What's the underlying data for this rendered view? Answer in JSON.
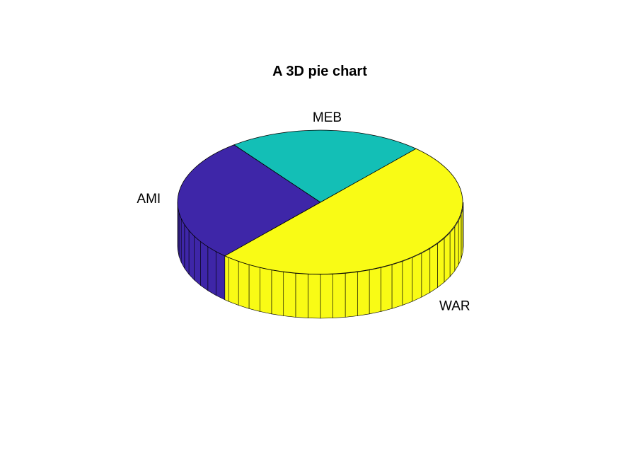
{
  "chart_data": {
    "type": "pie",
    "title": "A 3D pie chart",
    "labels": [
      "AMI",
      "MEB",
      "WAR"
    ],
    "values": [
      28,
      22,
      50
    ],
    "colors": [
      "#3e26a8",
      "#13bfb6",
      "#f9fb15"
    ],
    "edge_color": "#000000",
    "legend": "none"
  }
}
